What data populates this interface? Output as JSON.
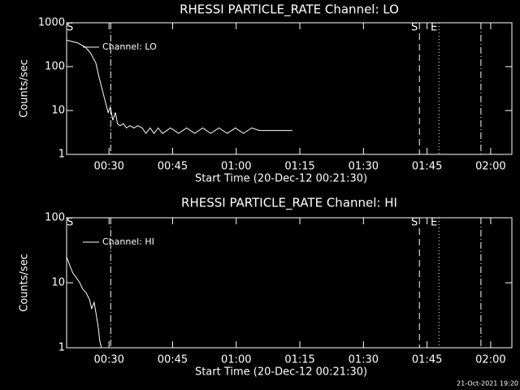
{
  "chart_data": [
    {
      "type": "line",
      "title": "RHESSI PARTICLE_RATE Channel: LO",
      "xlabel": "Start Time (20-Dec-12 00:21:30)",
      "ylabel": "Counts/sec",
      "x": [
        20,
        22.5,
        24.4,
        25.7,
        26.9,
        27.6,
        28.4,
        29.2,
        29.8,
        30.3,
        30.9,
        31.5,
        32.0,
        32.6,
        33.4,
        34.1,
        34.9,
        35.9,
        36.8,
        37.8,
        38.7,
        39.7,
        40.6,
        41.6,
        42.6,
        44.5,
        46.4,
        48.3,
        50.2,
        52.1,
        54.0,
        55.9,
        57.9,
        59.8,
        61.7,
        63.6,
        65.5,
        67.4,
        70.3,
        73.2
      ],
      "series": [
        {
          "name": "Channel: LO",
          "color": "#ffffff",
          "values": [
            400,
            350,
            280,
            200,
            120,
            60,
            30,
            15,
            9,
            12,
            6,
            9,
            5,
            4.5,
            5,
            4,
            4.5,
            4,
            4.5,
            4,
            3,
            4,
            3,
            4,
            3,
            4,
            3,
            4,
            3,
            4,
            3,
            4,
            3,
            4,
            3,
            4,
            3.5,
            3.5,
            3.5,
            3.5
          ]
        }
      ],
      "xlim": [
        20,
        125
      ],
      "xticks": [
        {
          "value": 30,
          "label": "00:30"
        },
        {
          "value": 45,
          "label": "00:45"
        },
        {
          "value": 60,
          "label": "01:00"
        },
        {
          "value": 75,
          "label": "01:15"
        },
        {
          "value": 90,
          "label": "01:30"
        },
        {
          "value": 105,
          "label": "01:45"
        },
        {
          "value": 120,
          "label": "02:00"
        }
      ],
      "ylim": [
        1,
        1000
      ],
      "yticks": [
        1,
        10,
        100,
        1000
      ],
      "log_y": true,
      "annotations": [
        {
          "x": 20.8,
          "label": "S"
        },
        {
          "x": 30.4,
          "style": "dashdot"
        },
        {
          "x": 103.2,
          "style": "dashed",
          "label": "S"
        },
        {
          "x": 107.8,
          "style": "dotted",
          "label": "E"
        },
        {
          "x": 117.7,
          "style": "dashdot"
        }
      ]
    },
    {
      "type": "line",
      "title": "RHESSI PARTICLE_RATE Channel: HI",
      "xlabel": "Start Time (20-Dec-12 00:21:30)",
      "ylabel": "Counts/sec",
      "x": [
        20,
        20.8,
        21.5,
        22.3,
        23.1,
        23.8,
        24.6,
        25.4,
        25.9,
        26.5,
        26.9,
        27.5,
        27.8,
        28.2
      ],
      "series": [
        {
          "name": "Channel: HI",
          "color": "#ffffff",
          "values": [
            25,
            18,
            14,
            12,
            10,
            8,
            7,
            5.5,
            4,
            5,
            3.5,
            2,
            1.3,
            1
          ]
        }
      ],
      "xlim": [
        20,
        125
      ],
      "xticks": [
        {
          "value": 30,
          "label": "00:30"
        },
        {
          "value": 45,
          "label": "00:45"
        },
        {
          "value": 60,
          "label": "01:00"
        },
        {
          "value": 75,
          "label": "01:15"
        },
        {
          "value": 90,
          "label": "01:30"
        },
        {
          "value": 105,
          "label": "01:45"
        },
        {
          "value": 120,
          "label": "02:00"
        }
      ],
      "ylim": [
        1,
        100
      ],
      "yticks": [
        1,
        10,
        100
      ],
      "log_y": true,
      "annotations": [
        {
          "x": 20.8,
          "label": "S"
        },
        {
          "x": 30.4,
          "style": "dashdot"
        },
        {
          "x": 103.2,
          "style": "dashed",
          "label": "S"
        },
        {
          "x": 107.8,
          "style": "dotted",
          "label": "E"
        },
        {
          "x": 117.7,
          "style": "dashdot"
        }
      ]
    }
  ],
  "footer": "21-Oct-2021 19:20"
}
